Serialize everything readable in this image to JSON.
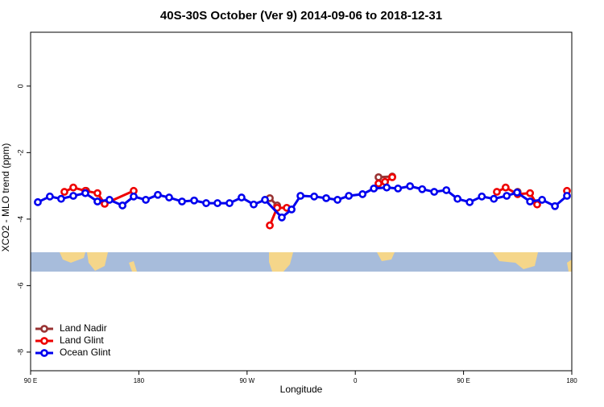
{
  "chart_data": {
    "type": "line",
    "title": "40S-30S October (Ver 9)   2014-09-06 to 2018-12-31",
    "x_label": "Longitude",
    "y_label": "XCO2 - MLO trend (ppm)",
    "xlim": [
      90,
      540
    ],
    "xticks": [
      {
        "value": 90,
        "label": "90 E"
      },
      {
        "value": 180,
        "label": "180"
      },
      {
        "value": 270,
        "label": "90 W"
      },
      {
        "value": 360,
        "label": "0"
      },
      {
        "value": 450,
        "label": "90 E"
      },
      {
        "value": 540,
        "label": "180"
      }
    ],
    "ylim": [
      -8.56,
      1.62
    ],
    "yticks": [
      0,
      -2,
      -4,
      -6,
      -8
    ],
    "legend": "bottom-left",
    "series": [
      {
        "name": "Land Nadir",
        "color": "#993333",
        "x": [
          136.2,
          null,
          288.9,
          295,
          null,
          379.3,
          390.7,
          null,
          495
        ],
        "values": [
          -3.15,
          null,
          -3.37,
          -3.59,
          null,
          -2.74,
          -2.72,
          null,
          -3.18
        ]
      },
      {
        "name": "Land Glint",
        "color": "#ee0000",
        "x": [
          118.1,
          125.5,
          135.5,
          145.6,
          151.6,
          175.7,
          null,
          288.9,
          295,
          303,
          null,
          379.3,
          384.7,
          390.7,
          null,
          477.7,
          485,
          495,
          505.3,
          511.2,
          null,
          536
        ],
        "values": [
          -3.18,
          -3.05,
          -3.15,
          -3.22,
          -3.54,
          -3.15,
          null,
          -4.19,
          -3.66,
          -3.66,
          null,
          -2.93,
          -2.88,
          -2.74,
          null,
          -3.18,
          -3.05,
          -3.25,
          -3.22,
          -3.56,
          null,
          -3.15
        ]
      },
      {
        "name": "Ocean Glint",
        "color": "#0000ee",
        "x": [
          96,
          106,
          115.4,
          125.5,
          135.5,
          145.6,
          155.6,
          166.4,
          175.7,
          185.8,
          195.8,
          205.2,
          215.9,
          226,
          236,
          245.4,
          255.4,
          265.4,
          275.5,
          284.9,
          298.9,
          307,
          314.4,
          325.8,
          335.8,
          345.2,
          354.6,
          366,
          375.4,
          386.1,
          395.5,
          405.5,
          415.6,
          425.6,
          435.7,
          445,
          455.1,
          465.2,
          475.2,
          485.9,
          494.5,
          505.3,
          515.3,
          526,
          536
        ],
        "values": [
          -3.49,
          -3.32,
          -3.39,
          -3.3,
          -3.22,
          -3.47,
          -3.42,
          -3.59,
          -3.32,
          -3.42,
          -3.27,
          -3.35,
          -3.47,
          -3.44,
          -3.52,
          -3.52,
          -3.52,
          -3.35,
          -3.56,
          -3.42,
          -3.95,
          -3.71,
          -3.3,
          -3.32,
          -3.37,
          -3.42,
          -3.3,
          -3.25,
          -3.08,
          -3.05,
          -3.08,
          -3.01,
          -3.1,
          -3.18,
          -3.13,
          -3.39,
          -3.49,
          -3.32,
          -3.39,
          -3.3,
          -3.2,
          -3.47,
          -3.42,
          -3.61,
          -3.3
        ]
      }
    ]
  }
}
